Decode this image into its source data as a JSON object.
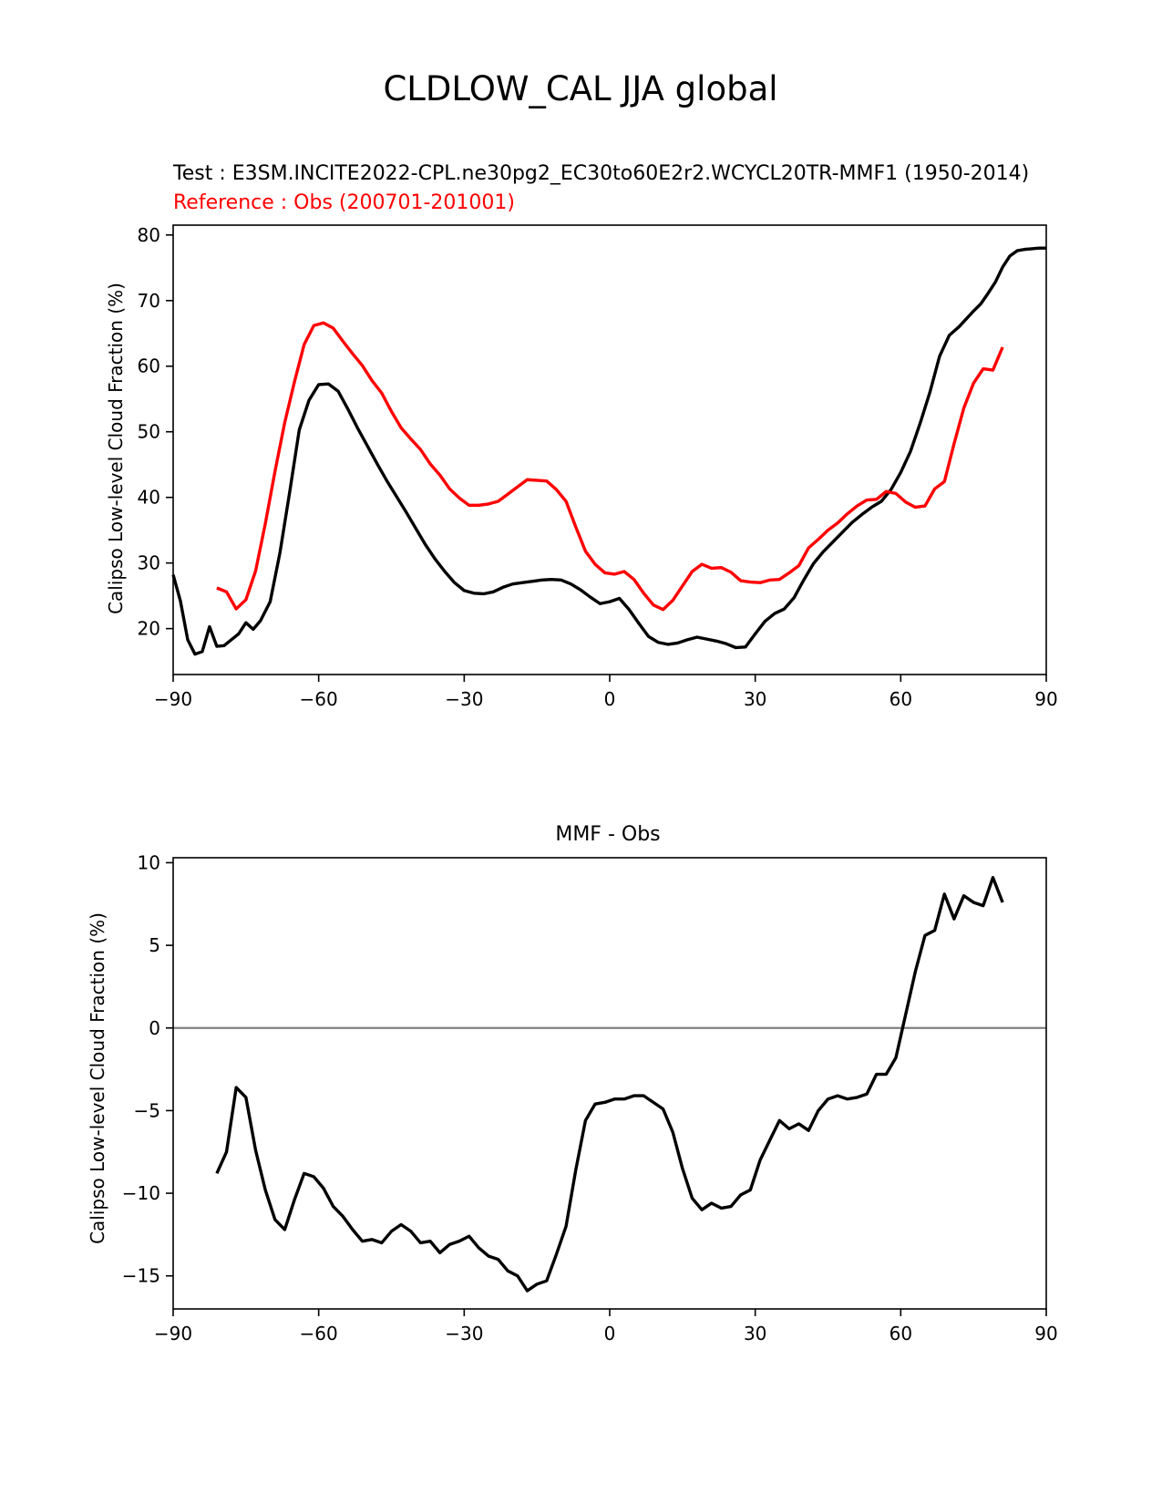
{
  "figure": {
    "suptitle": "CLDLOW_CAL JJA global"
  },
  "colors": {
    "test": "#000000",
    "reference": "#ff0000",
    "zero_line": "#808080",
    "axes": "#000000"
  },
  "chart_data": [
    {
      "type": "line",
      "panel": "top",
      "title_left_test": "Test : E3SM.INCITE2022-CPL.ne30pg2_EC30to60E2r2.WCYCL20TR-MMF1 (1950-2014)",
      "title_left_ref": "Reference : Obs (200701-201001)",
      "xlabel": "",
      "ylabel": "Calipso Low-level Cloud Fraction (%)",
      "xlim": [
        -90,
        90
      ],
      "ylim": [
        13,
        81.5
      ],
      "xticks": [
        -90,
        -60,
        -30,
        0,
        30,
        60,
        90
      ],
      "xtick_labels": [
        "−90",
        "−60",
        "−30",
        "0",
        "30",
        "60",
        "90"
      ],
      "yticks": [
        20,
        30,
        40,
        50,
        60,
        70,
        80
      ],
      "ytick_labels": [
        "20",
        "30",
        "40",
        "50",
        "60",
        "70",
        "80"
      ],
      "grid": false,
      "series": [
        {
          "name": "Test",
          "color": "#000000",
          "x": [
            -90,
            -88.5,
            -87,
            -85.5,
            -84,
            -82.5,
            -81,
            -79.5,
            -78,
            -76.5,
            -75,
            -73.5,
            -72,
            -70,
            -68,
            -66,
            -64,
            -62,
            -60,
            -58,
            -56,
            -54,
            -52,
            -50,
            -48,
            -46,
            -44,
            -42,
            -40,
            -38,
            -36,
            -34,
            -32,
            -30,
            -28,
            -26,
            -24,
            -22,
            -20,
            -18,
            -16,
            -14,
            -12,
            -10,
            -8,
            -6,
            -4,
            -2,
            0,
            2,
            4,
            6,
            8,
            10,
            12,
            14,
            16,
            18,
            20,
            22,
            24,
            26,
            28,
            30,
            32,
            34,
            36,
            38,
            40,
            42,
            44,
            46,
            48,
            50,
            52,
            54,
            56,
            58,
            60,
            62,
            64,
            66,
            68,
            70,
            72,
            73.5,
            75,
            76.5,
            78,
            79.5,
            81,
            82.5,
            84,
            85.5,
            87,
            88.5,
            90
          ],
          "values": [
            28.2,
            24.2,
            18.3,
            16.1,
            16.5,
            20.3,
            17.3,
            17.4,
            18.3,
            19.2,
            20.9,
            19.9,
            21.2,
            24.1,
            31.5,
            40.7,
            50.3,
            54.8,
            57.2,
            57.3,
            56.2,
            53.5,
            50.6,
            47.9,
            45.2,
            42.6,
            40.2,
            37.8,
            35.3,
            32.8,
            30.6,
            28.7,
            27.0,
            25.8,
            25.4,
            25.3,
            25.6,
            26.3,
            26.8,
            27.0,
            27.2,
            27.4,
            27.5,
            27.4,
            26.8,
            25.9,
            24.8,
            23.8,
            24.1,
            24.6,
            22.9,
            20.8,
            18.8,
            17.9,
            17.6,
            17.8,
            18.3,
            18.7,
            18.4,
            18.1,
            17.7,
            17.1,
            17.2,
            19.2,
            21.1,
            22.3,
            23.0,
            24.7,
            27.4,
            29.9,
            31.7,
            33.2,
            34.7,
            36.2,
            37.4,
            38.5,
            39.4,
            41.2,
            43.8,
            47.0,
            51.3,
            56.0,
            61.5,
            64.7,
            66.0,
            67.2,
            68.4,
            69.5,
            71.1,
            72.8,
            75.1,
            76.8,
            77.6,
            77.8,
            77.9,
            78.0,
            78.0
          ],
          "linewidth": "thick"
        },
        {
          "name": "Reference",
          "color": "#ff0000",
          "x": [
            -81,
            -79,
            -77,
            -75,
            -73,
            -71,
            -69,
            -67,
            -65,
            -63,
            -61,
            -59,
            -57,
            -55,
            -53,
            -51,
            -49,
            -47,
            -45,
            -43,
            -41,
            -39,
            -37,
            -35,
            -33,
            -31,
            -29,
            -27,
            -25,
            -23,
            -21,
            -19,
            -17,
            -15,
            -13,
            -11,
            -9,
            -7,
            -5,
            -3,
            -1,
            1,
            3,
            5,
            7,
            9,
            11,
            13,
            15,
            17,
            19,
            21,
            23,
            25,
            27,
            29,
            31,
            33,
            35,
            37,
            39,
            41,
            43,
            45,
            47,
            49,
            51,
            53,
            55,
            57,
            59,
            61,
            63,
            65,
            67,
            69,
            71,
            73,
            75,
            77,
            79,
            81
          ],
          "values": [
            26.2,
            25.6,
            23.0,
            24.4,
            28.8,
            36.0,
            44.0,
            51.4,
            57.6,
            63.3,
            66.2,
            66.6,
            65.8,
            63.8,
            61.9,
            60.1,
            57.8,
            55.9,
            53.1,
            50.6,
            48.9,
            47.3,
            45.1,
            43.4,
            41.3,
            39.9,
            38.8,
            38.8,
            39.0,
            39.4,
            40.5,
            41.6,
            42.7,
            42.6,
            42.5,
            41.2,
            39.4,
            35.5,
            31.8,
            29.8,
            28.5,
            28.3,
            28.7,
            27.5,
            25.4,
            23.6,
            22.9,
            24.3,
            26.5,
            28.7,
            29.8,
            29.2,
            29.3,
            28.6,
            27.3,
            27.1,
            27.0,
            27.4,
            27.5,
            28.5,
            29.6,
            32.3,
            33.6,
            35.0,
            36.1,
            37.5,
            38.7,
            39.6,
            39.7,
            40.9,
            40.6,
            39.3,
            38.5,
            38.7,
            41.3,
            42.4,
            48.2,
            53.6,
            57.4,
            59.6,
            59.4,
            62.9
          ],
          "linewidth": "thick"
        }
      ]
    },
    {
      "type": "line",
      "panel": "bottom",
      "title": "MMF - Obs",
      "xlabel": "",
      "ylabel": "Calipso Low-level Cloud Fraction (%)",
      "xlim": [
        -90,
        90
      ],
      "ylim": [
        -17,
        10.3
      ],
      "xticks": [
        -90,
        -60,
        -30,
        0,
        30,
        60,
        90
      ],
      "xtick_labels": [
        "−90",
        "−60",
        "−30",
        "0",
        "30",
        "60",
        "90"
      ],
      "yticks": [
        -15,
        -10,
        -5,
        0,
        5,
        10
      ],
      "ytick_labels": [
        "−15",
        "−10",
        "−5",
        "0",
        "5",
        "10"
      ],
      "grid": false,
      "reference_line": {
        "y": 0,
        "color": "#808080"
      },
      "series": [
        {
          "name": "MMF - Obs",
          "color": "#000000",
          "x": [
            -81,
            -79,
            -77,
            -75,
            -73,
            -71,
            -69,
            -67,
            -65,
            -63,
            -61,
            -59,
            -57,
            -55,
            -53,
            -51,
            -49,
            -47,
            -45,
            -43,
            -41,
            -39,
            -37,
            -35,
            -33,
            -31,
            -29,
            -27,
            -25,
            -23,
            -21,
            -19,
            -17,
            -15,
            -13,
            -11,
            -9,
            -7,
            -5,
            -3,
            -1,
            1,
            3,
            5,
            7,
            9,
            11,
            13,
            15,
            17,
            19,
            21,
            23,
            25,
            27,
            29,
            31,
            33,
            35,
            37,
            39,
            41,
            43,
            45,
            47,
            49,
            51,
            53,
            55,
            57,
            59,
            61,
            63,
            65,
            67,
            69,
            71,
            73,
            75,
            77,
            79,
            81
          ],
          "values": [
            -8.8,
            -7.5,
            -3.6,
            -4.2,
            -7.4,
            -9.8,
            -11.6,
            -12.2,
            -10.4,
            -8.8,
            -9.0,
            -9.7,
            -10.8,
            -11.4,
            -12.2,
            -12.9,
            -12.8,
            -13.0,
            -12.3,
            -11.9,
            -12.3,
            -13.0,
            -12.9,
            -13.6,
            -13.1,
            -12.9,
            -12.6,
            -13.3,
            -13.8,
            -14.0,
            -14.7,
            -15.0,
            -15.9,
            -15.5,
            -15.3,
            -13.7,
            -12.0,
            -8.6,
            -5.6,
            -4.6,
            -4.5,
            -4.3,
            -4.3,
            -4.1,
            -4.1,
            -4.5,
            -4.9,
            -6.3,
            -8.5,
            -10.3,
            -11.0,
            -10.6,
            -10.9,
            -10.8,
            -10.1,
            -9.8,
            -8.0,
            -6.8,
            -5.6,
            -6.1,
            -5.8,
            -6.2,
            -5.0,
            -4.3,
            -4.1,
            -4.3,
            -4.2,
            -4.0,
            -2.8,
            -2.8,
            -1.8,
            0.8,
            3.4,
            5.6,
            5.9,
            8.1,
            6.6,
            8.0,
            7.6,
            7.4,
            9.1,
            7.6
          ],
          "linewidth": "thick"
        }
      ]
    }
  ]
}
